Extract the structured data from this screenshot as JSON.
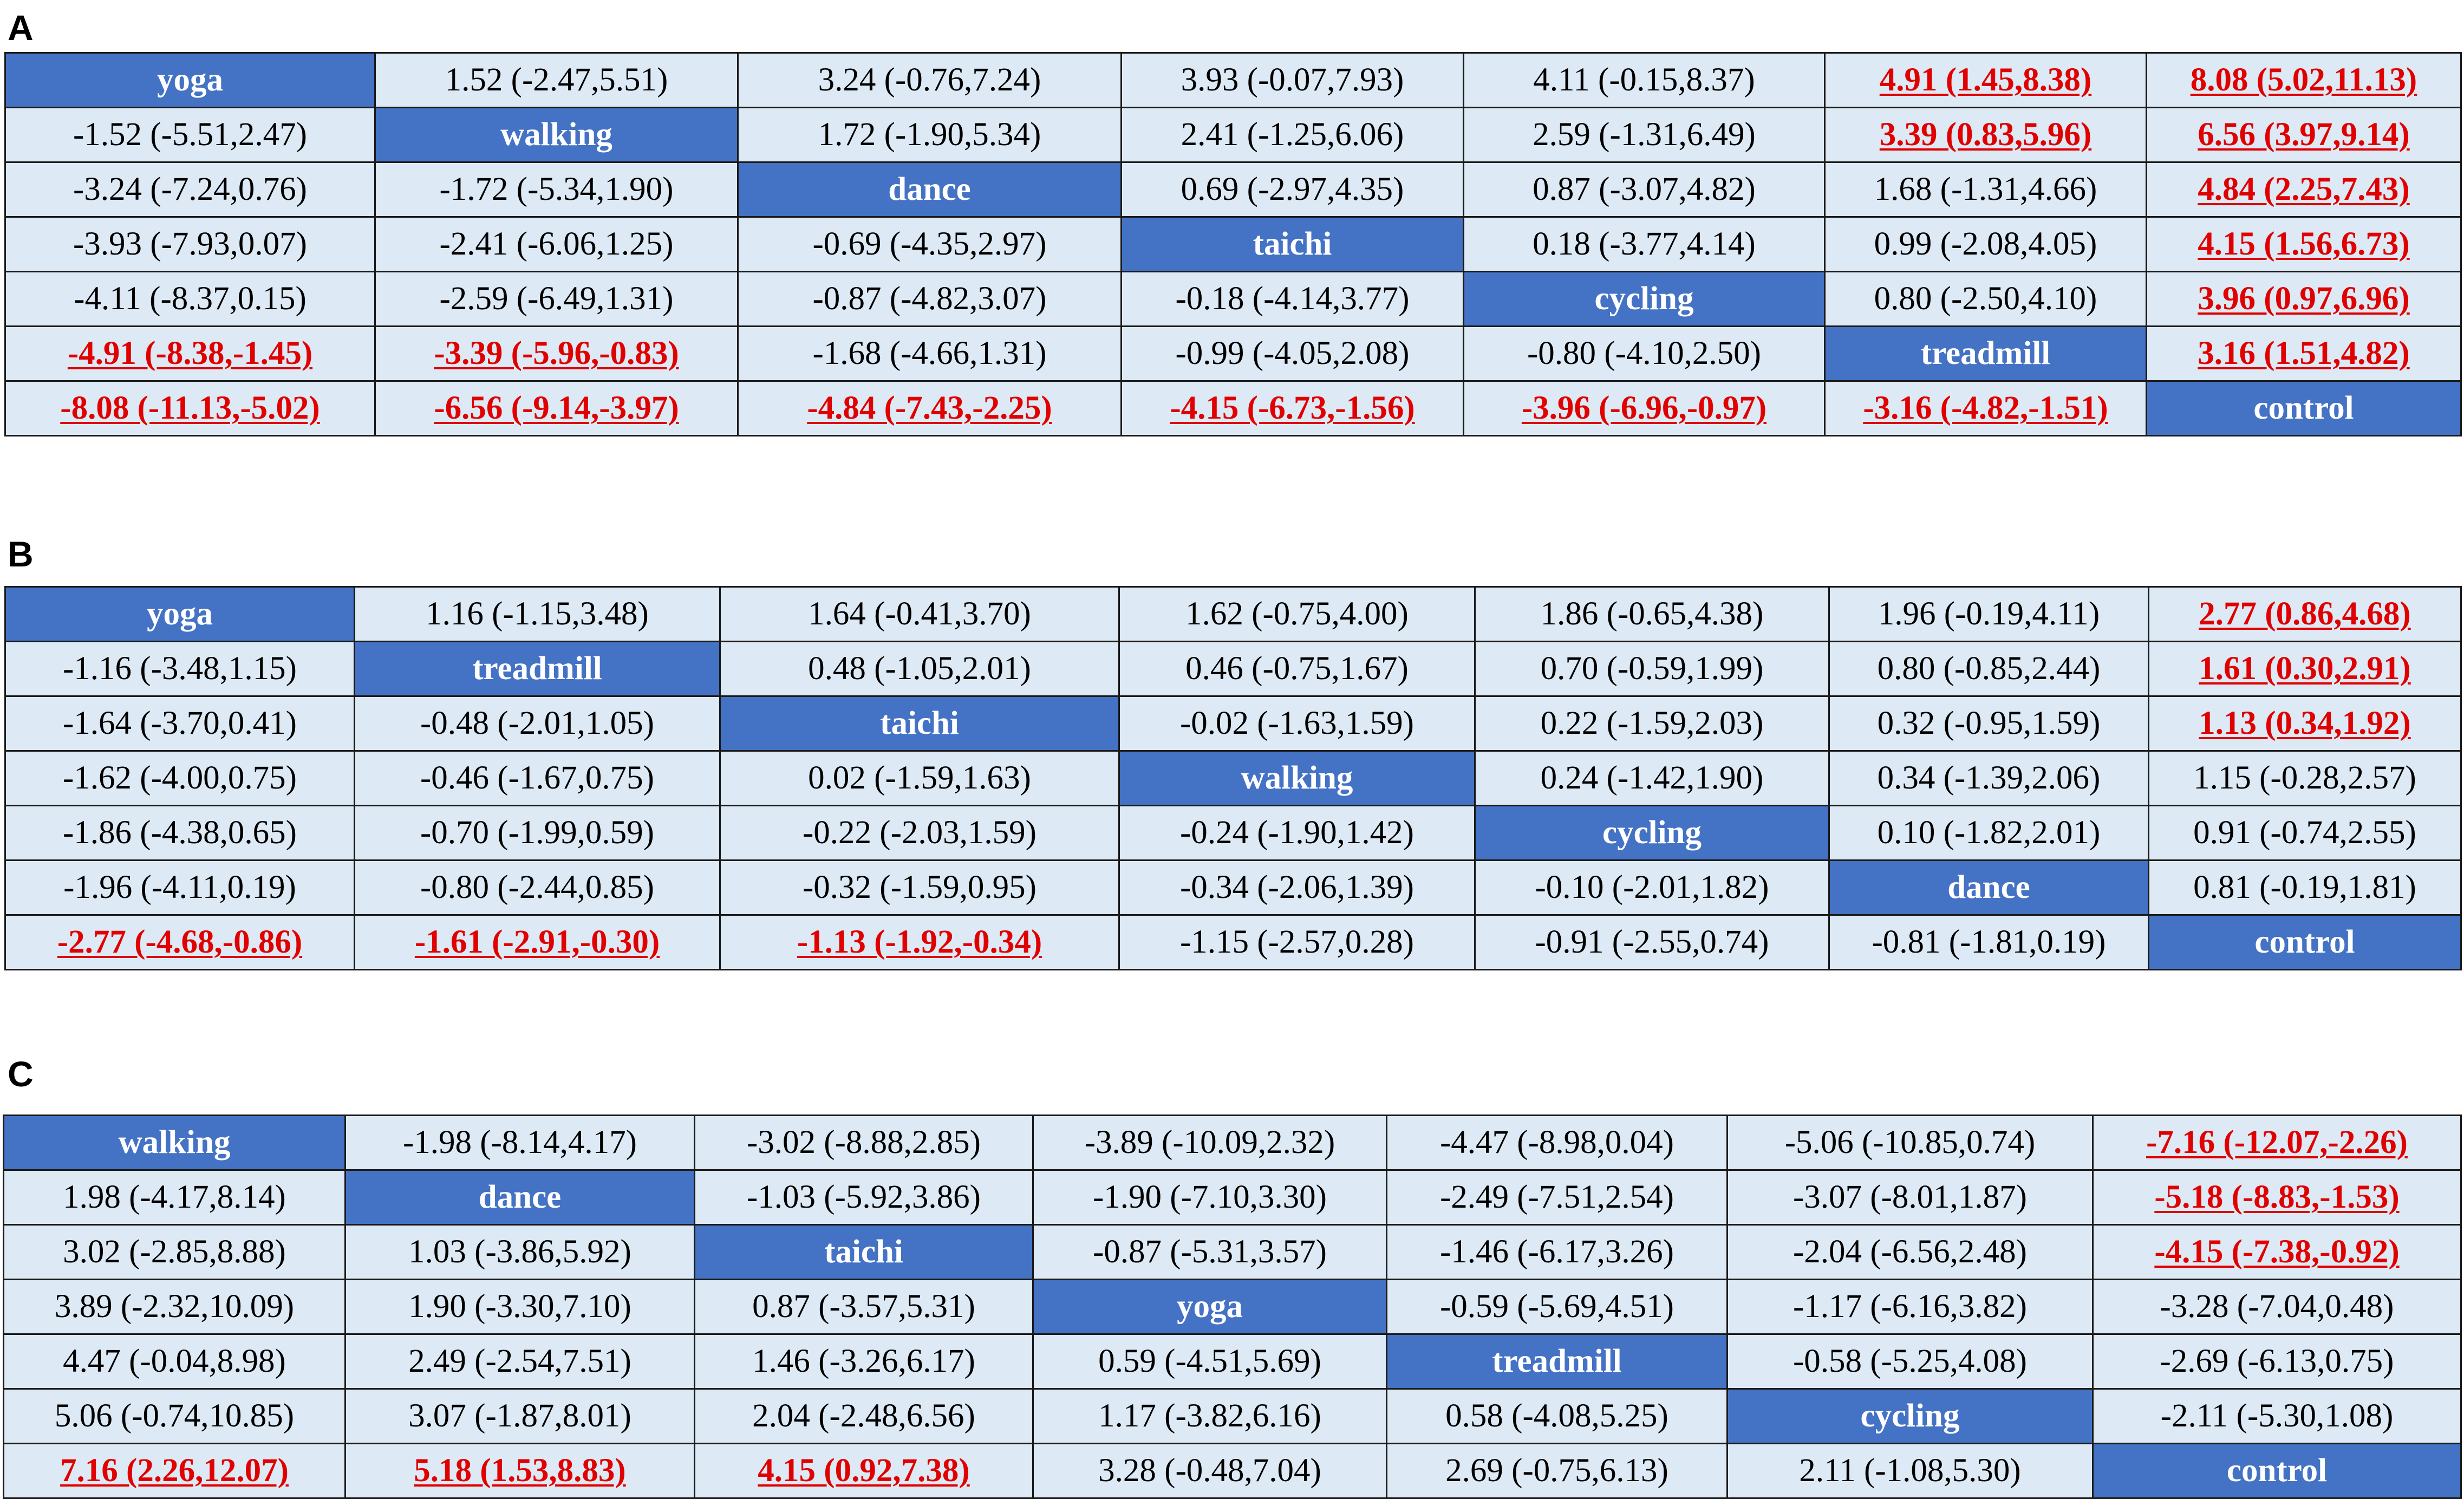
{
  "panels": [
    {
      "label": "A",
      "rows": [
        [
          {
            "t": "yoga",
            "d": 1
          },
          {
            "t": "1.52 (-2.47,5.51)"
          },
          {
            "t": "3.24 (-0.76,7.24)"
          },
          {
            "t": "3.93 (-0.07,7.93)"
          },
          {
            "t": "4.11 (-0.15,8.37)"
          },
          {
            "t": "4.91 (1.45,8.38)",
            "s": 1
          },
          {
            "t": "8.08 (5.02,11.13)",
            "s": 1
          }
        ],
        [
          {
            "t": "-1.52 (-5.51,2.47)"
          },
          {
            "t": "walking",
            "d": 1
          },
          {
            "t": "1.72 (-1.90,5.34)"
          },
          {
            "t": "2.41 (-1.25,6.06)"
          },
          {
            "t": "2.59 (-1.31,6.49)"
          },
          {
            "t": "3.39 (0.83,5.96)",
            "s": 1
          },
          {
            "t": "6.56 (3.97,9.14)",
            "s": 1
          }
        ],
        [
          {
            "t": "-3.24 (-7.24,0.76)"
          },
          {
            "t": "-1.72 (-5.34,1.90)"
          },
          {
            "t": "dance",
            "d": 1
          },
          {
            "t": "0.69 (-2.97,4.35)"
          },
          {
            "t": "0.87 (-3.07,4.82)"
          },
          {
            "t": "1.68 (-1.31,4.66)"
          },
          {
            "t": "4.84 (2.25,7.43)",
            "s": 1
          }
        ],
        [
          {
            "t": "-3.93 (-7.93,0.07)"
          },
          {
            "t": "-2.41 (-6.06,1.25)"
          },
          {
            "t": "-0.69 (-4.35,2.97)"
          },
          {
            "t": "taichi",
            "d": 1
          },
          {
            "t": "0.18 (-3.77,4.14)"
          },
          {
            "t": "0.99 (-2.08,4.05)"
          },
          {
            "t": "4.15 (1.56,6.73)",
            "s": 1
          }
        ],
        [
          {
            "t": "-4.11 (-8.37,0.15)"
          },
          {
            "t": "-2.59 (-6.49,1.31)"
          },
          {
            "t": "-0.87 (-4.82,3.07)"
          },
          {
            "t": "-0.18 (-4.14,3.77)"
          },
          {
            "t": "cycling",
            "d": 1
          },
          {
            "t": "0.80 (-2.50,4.10)"
          },
          {
            "t": "3.96 (0.97,6.96)",
            "s": 1
          }
        ],
        [
          {
            "t": "-4.91 (-8.38,-1.45)",
            "s": 1
          },
          {
            "t": "-3.39 (-5.96,-0.83)",
            "s": 1
          },
          {
            "t": "-1.68 (-4.66,1.31)"
          },
          {
            "t": "-0.99 (-4.05,2.08)"
          },
          {
            "t": "-0.80 (-4.10,2.50)"
          },
          {
            "t": "treadmill",
            "d": 1
          },
          {
            "t": "3.16 (1.51,4.82)",
            "s": 1
          }
        ],
        [
          {
            "t": "-8.08 (-11.13,-5.02)",
            "s": 1
          },
          {
            "t": "-6.56 (-9.14,-3.97)",
            "s": 1
          },
          {
            "t": "-4.84 (-7.43,-2.25)",
            "s": 1
          },
          {
            "t": "-4.15 (-6.73,-1.56)",
            "s": 1
          },
          {
            "t": "-3.96 (-6.96,-0.97)",
            "s": 1
          },
          {
            "t": "-3.16 (-4.82,-1.51)",
            "s": 1
          },
          {
            "t": "control",
            "d": 1
          }
        ]
      ]
    },
    {
      "label": "B",
      "rows": [
        [
          {
            "t": "yoga",
            "d": 1
          },
          {
            "t": "1.16 (-1.15,3.48)"
          },
          {
            "t": "1.64 (-0.41,3.70)"
          },
          {
            "t": "1.62 (-0.75,4.00)"
          },
          {
            "t": "1.86 (-0.65,4.38)"
          },
          {
            "t": "1.96 (-0.19,4.11)"
          },
          {
            "t": "2.77 (0.86,4.68)",
            "s": 1
          }
        ],
        [
          {
            "t": "-1.16 (-3.48,1.15)"
          },
          {
            "t": "treadmill",
            "d": 1
          },
          {
            "t": "0.48 (-1.05,2.01)"
          },
          {
            "t": "0.46 (-0.75,1.67)"
          },
          {
            "t": "0.70 (-0.59,1.99)"
          },
          {
            "t": "0.80 (-0.85,2.44)"
          },
          {
            "t": "1.61 (0.30,2.91)",
            "s": 1
          }
        ],
        [
          {
            "t": "-1.64 (-3.70,0.41)"
          },
          {
            "t": "-0.48 (-2.01,1.05)"
          },
          {
            "t": "taichi",
            "d": 1
          },
          {
            "t": "-0.02 (-1.63,1.59)"
          },
          {
            "t": "0.22 (-1.59,2.03)"
          },
          {
            "t": "0.32 (-0.95,1.59)"
          },
          {
            "t": "1.13 (0.34,1.92)",
            "s": 1
          }
        ],
        [
          {
            "t": "-1.62 (-4.00,0.75)"
          },
          {
            "t": "-0.46 (-1.67,0.75)"
          },
          {
            "t": "0.02 (-1.59,1.63)"
          },
          {
            "t": "walking",
            "d": 1
          },
          {
            "t": "0.24 (-1.42,1.90)"
          },
          {
            "t": "0.34 (-1.39,2.06)"
          },
          {
            "t": "1.15 (-0.28,2.57)"
          }
        ],
        [
          {
            "t": "-1.86 (-4.38,0.65)"
          },
          {
            "t": "-0.70 (-1.99,0.59)"
          },
          {
            "t": "-0.22 (-2.03,1.59)"
          },
          {
            "t": "-0.24 (-1.90,1.42)"
          },
          {
            "t": "cycling",
            "d": 1
          },
          {
            "t": "0.10 (-1.82,2.01)"
          },
          {
            "t": "0.91 (-0.74,2.55)"
          }
        ],
        [
          {
            "t": "-1.96 (-4.11,0.19)"
          },
          {
            "t": "-0.80 (-2.44,0.85)"
          },
          {
            "t": "-0.32 (-1.59,0.95)"
          },
          {
            "t": "-0.34 (-2.06,1.39)"
          },
          {
            "t": "-0.10 (-2.01,1.82)"
          },
          {
            "t": "dance",
            "d": 1
          },
          {
            "t": "0.81 (-0.19,1.81)"
          }
        ],
        [
          {
            "t": "-2.77 (-4.68,-0.86)",
            "s": 1
          },
          {
            "t": "-1.61 (-2.91,-0.30)",
            "s": 1
          },
          {
            "t": "-1.13 (-1.92,-0.34)",
            "s": 1
          },
          {
            "t": "-1.15 (-2.57,0.28)"
          },
          {
            "t": "-0.91 (-2.55,0.74)"
          },
          {
            "t": "-0.81 (-1.81,0.19)"
          },
          {
            "t": "control",
            "d": 1
          }
        ]
      ]
    },
    {
      "label": "C",
      "rows": [
        [
          {
            "t": "walking",
            "d": 1
          },
          {
            "t": "-1.98 (-8.14,4.17)"
          },
          {
            "t": "-3.02 (-8.88,2.85)"
          },
          {
            "t": "-3.89 (-10.09,2.32)"
          },
          {
            "t": "-4.47 (-8.98,0.04)"
          },
          {
            "t": "-5.06 (-10.85,0.74)"
          },
          {
            "t": "-7.16 (-12.07,-2.26)",
            "s": 1
          }
        ],
        [
          {
            "t": "1.98 (-4.17,8.14)"
          },
          {
            "t": "dance",
            "d": 1
          },
          {
            "t": "-1.03 (-5.92,3.86)"
          },
          {
            "t": "-1.90 (-7.10,3.30)"
          },
          {
            "t": "-2.49 (-7.51,2.54)"
          },
          {
            "t": "-3.07 (-8.01,1.87)"
          },
          {
            "t": "-5.18 (-8.83,-1.53)",
            "s": 1
          }
        ],
        [
          {
            "t": "3.02 (-2.85,8.88)"
          },
          {
            "t": "1.03 (-3.86,5.92)"
          },
          {
            "t": "taichi",
            "d": 1
          },
          {
            "t": "-0.87 (-5.31,3.57)"
          },
          {
            "t": "-1.46 (-6.17,3.26)"
          },
          {
            "t": "-2.04 (-6.56,2.48)"
          },
          {
            "t": "-4.15 (-7.38,-0.92)",
            "s": 1
          }
        ],
        [
          {
            "t": "3.89 (-2.32,10.09)"
          },
          {
            "t": "1.90 (-3.30,7.10)"
          },
          {
            "t": "0.87 (-3.57,5.31)"
          },
          {
            "t": "yoga",
            "d": 1
          },
          {
            "t": "-0.59 (-5.69,4.51)"
          },
          {
            "t": "-1.17 (-6.16,3.82)"
          },
          {
            "t": "-3.28 (-7.04,0.48)"
          }
        ],
        [
          {
            "t": "4.47 (-0.04,8.98)"
          },
          {
            "t": "2.49 (-2.54,7.51)"
          },
          {
            "t": "1.46 (-3.26,6.17)"
          },
          {
            "t": "0.59 (-4.51,5.69)"
          },
          {
            "t": "treadmill",
            "d": 1
          },
          {
            "t": "-0.58 (-5.25,4.08)"
          },
          {
            "t": "-2.69 (-6.13,0.75)"
          }
        ],
        [
          {
            "t": "5.06 (-0.74,10.85)"
          },
          {
            "t": "3.07 (-1.87,8.01)"
          },
          {
            "t": "2.04 (-2.48,6.56)"
          },
          {
            "t": "1.17 (-3.82,6.16)"
          },
          {
            "t": "0.58 (-4.08,5.25)"
          },
          {
            "t": "cycling",
            "d": 1
          },
          {
            "t": "-2.11 (-5.30,1.08)"
          }
        ],
        [
          {
            "t": "7.16 (2.26,12.07)",
            "s": 1
          },
          {
            "t": "5.18 (1.53,8.83)",
            "s": 1
          },
          {
            "t": "4.15 (0.92,7.38)",
            "s": 1
          },
          {
            "t": "3.28 (-0.48,7.04)"
          },
          {
            "t": "2.69 (-0.75,6.13)"
          },
          {
            "t": "2.11 (-1.08,5.30)"
          },
          {
            "t": "control",
            "d": 1
          }
        ]
      ]
    }
  ]
}
